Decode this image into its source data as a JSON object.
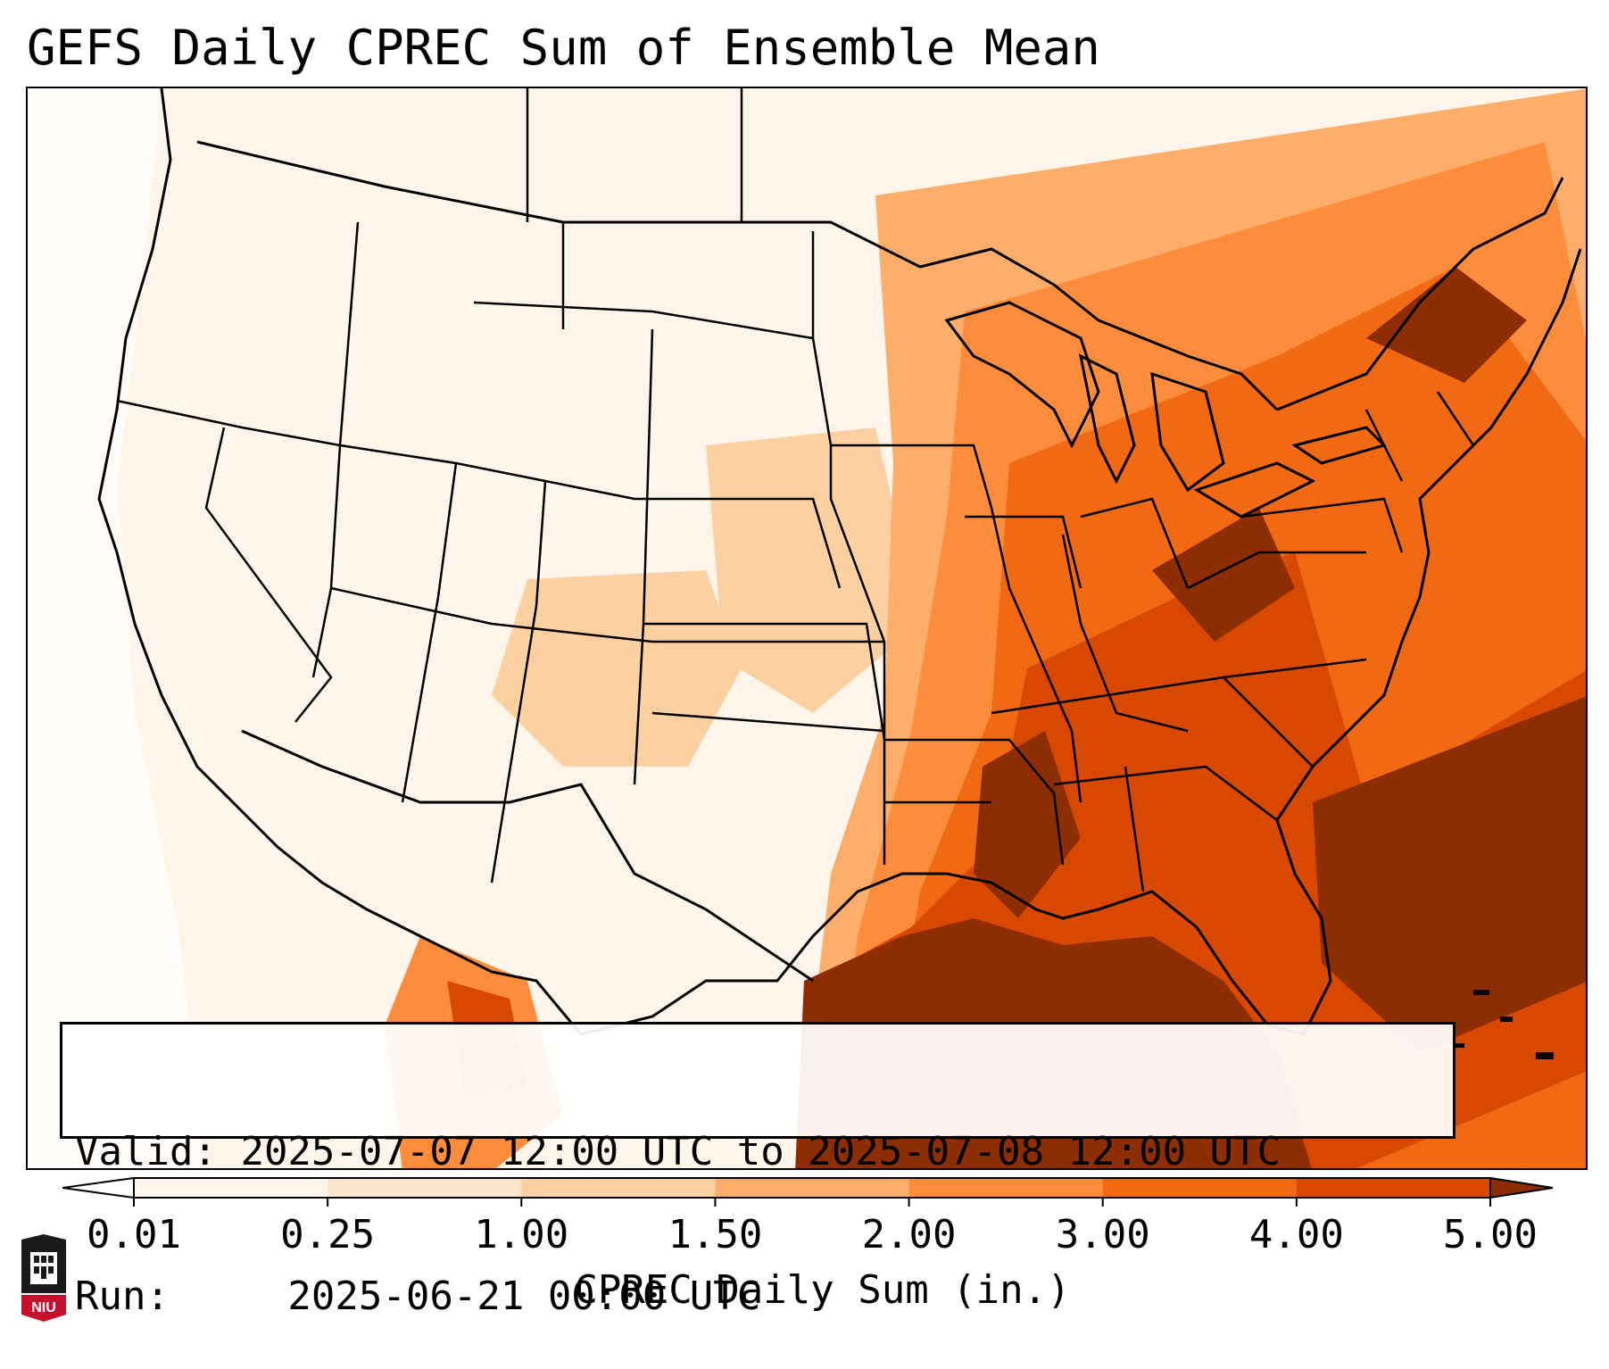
{
  "figure": {
    "title": "GEFS Daily CPREC Sum of Ensemble Mean"
  },
  "info_box": {
    "valid_label": "Valid:",
    "valid_value": "2025-07-07 12:00 UTC to 2025-07-08 12:00 UTC",
    "run_label": "Run:",
    "run_value": "2025-06-21 00:00 UTC"
  },
  "colorbar": {
    "title": "CPREC Daily Sum (in.)",
    "ticks": [
      "0.01",
      "0.25",
      "1.00",
      "1.50",
      "2.00",
      "3.00",
      "4.00",
      "5.00"
    ],
    "colors": [
      "#fff5eb",
      "#fee6ce",
      "#fdd0a2",
      "#fdae6b",
      "#fd8d3c",
      "#f16913",
      "#d94801",
      "#8c2d04"
    ],
    "under_color": "#ffffff",
    "over_color": "#8c2d04"
  },
  "map": {
    "region": "Contiguous United States",
    "variable": "CPREC",
    "heaviest_region": "Gulf Coast and Southeast"
  },
  "logo": {
    "text": "NIU",
    "icon": "university-building-icon"
  }
}
